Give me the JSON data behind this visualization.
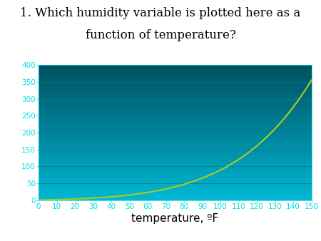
{
  "title_line1": "1. Which humidity variable is plotted here as a",
  "title_line2": "function of temperature?",
  "xlabel": "temperature, ºF",
  "xlim": [
    0,
    150
  ],
  "ylim": [
    0,
    400
  ],
  "xticks": [
    0,
    10,
    20,
    30,
    40,
    50,
    60,
    70,
    80,
    90,
    100,
    110,
    120,
    130,
    140,
    150
  ],
  "yticks": [
    0,
    50,
    100,
    150,
    200,
    250,
    300,
    350,
    400
  ],
  "tick_color": "#00e0e8",
  "curve_color": "#aacc22",
  "bg_color_top": "#005060",
  "bg_color_bottom": "#00b8d4",
  "grid_color": "#007a8a",
  "title_fontsize": 12,
  "xlabel_fontsize": 11,
  "tick_fontsize": 7.5,
  "curve_linewidth": 1.5,
  "fig_width": 4.5,
  "fig_height": 3.38,
  "dpi": 100
}
